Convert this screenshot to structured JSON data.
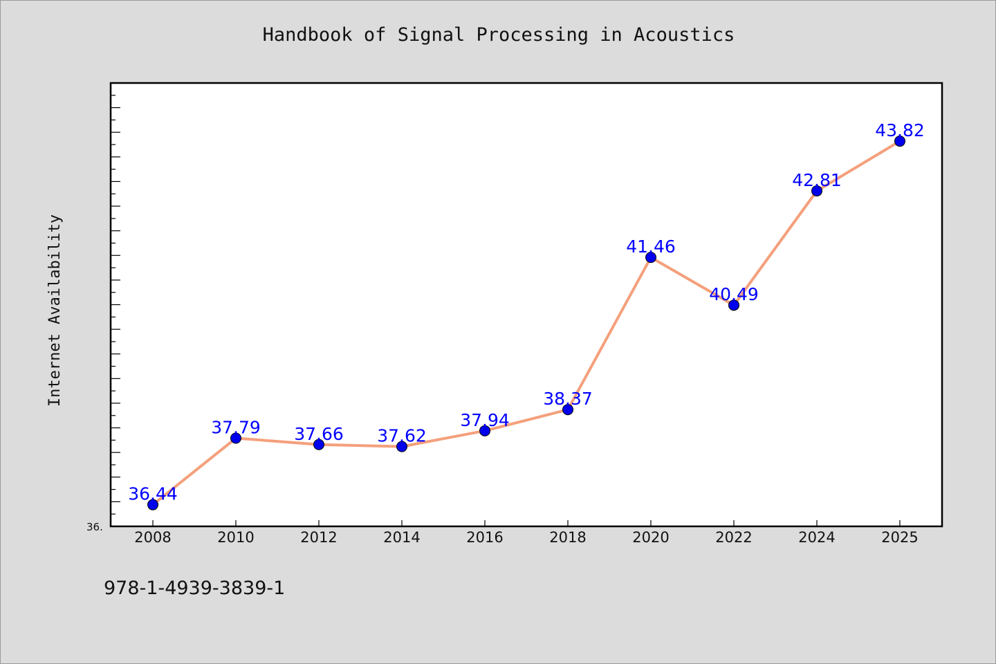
{
  "chart_data": {
    "type": "line",
    "title": "Handbook of Signal Processing in Acoustics",
    "xlabel": "",
    "ylabel": "Internet Availability",
    "categories": [
      "2008",
      "2010",
      "2012",
      "2014",
      "2016",
      "2018",
      "2020",
      "2022",
      "2024",
      "2025"
    ],
    "series": [
      {
        "values": [
          36.44,
          37.79,
          37.66,
          37.62,
          37.94,
          38.37,
          41.46,
          40.49,
          42.81,
          43.82
        ]
      }
    ],
    "data_labels": [
      "36.44",
      "37.79",
      "37.66",
      "37.62",
      "37.94",
      "38.37",
      "41.46",
      "40.49",
      "42.81",
      "43.82"
    ],
    "ylim": [
      36.0,
      45.0
    ],
    "ytick_labels": [
      "36."
    ],
    "grid": false,
    "colors": {
      "line": "#f4a07c",
      "marker": "#0000ee",
      "data_label": "#0000ff",
      "background": "#dcdcdc",
      "plot_area": "#ffffff"
    }
  },
  "footer": {
    "isbn": "978-1-4939-3839-1"
  }
}
